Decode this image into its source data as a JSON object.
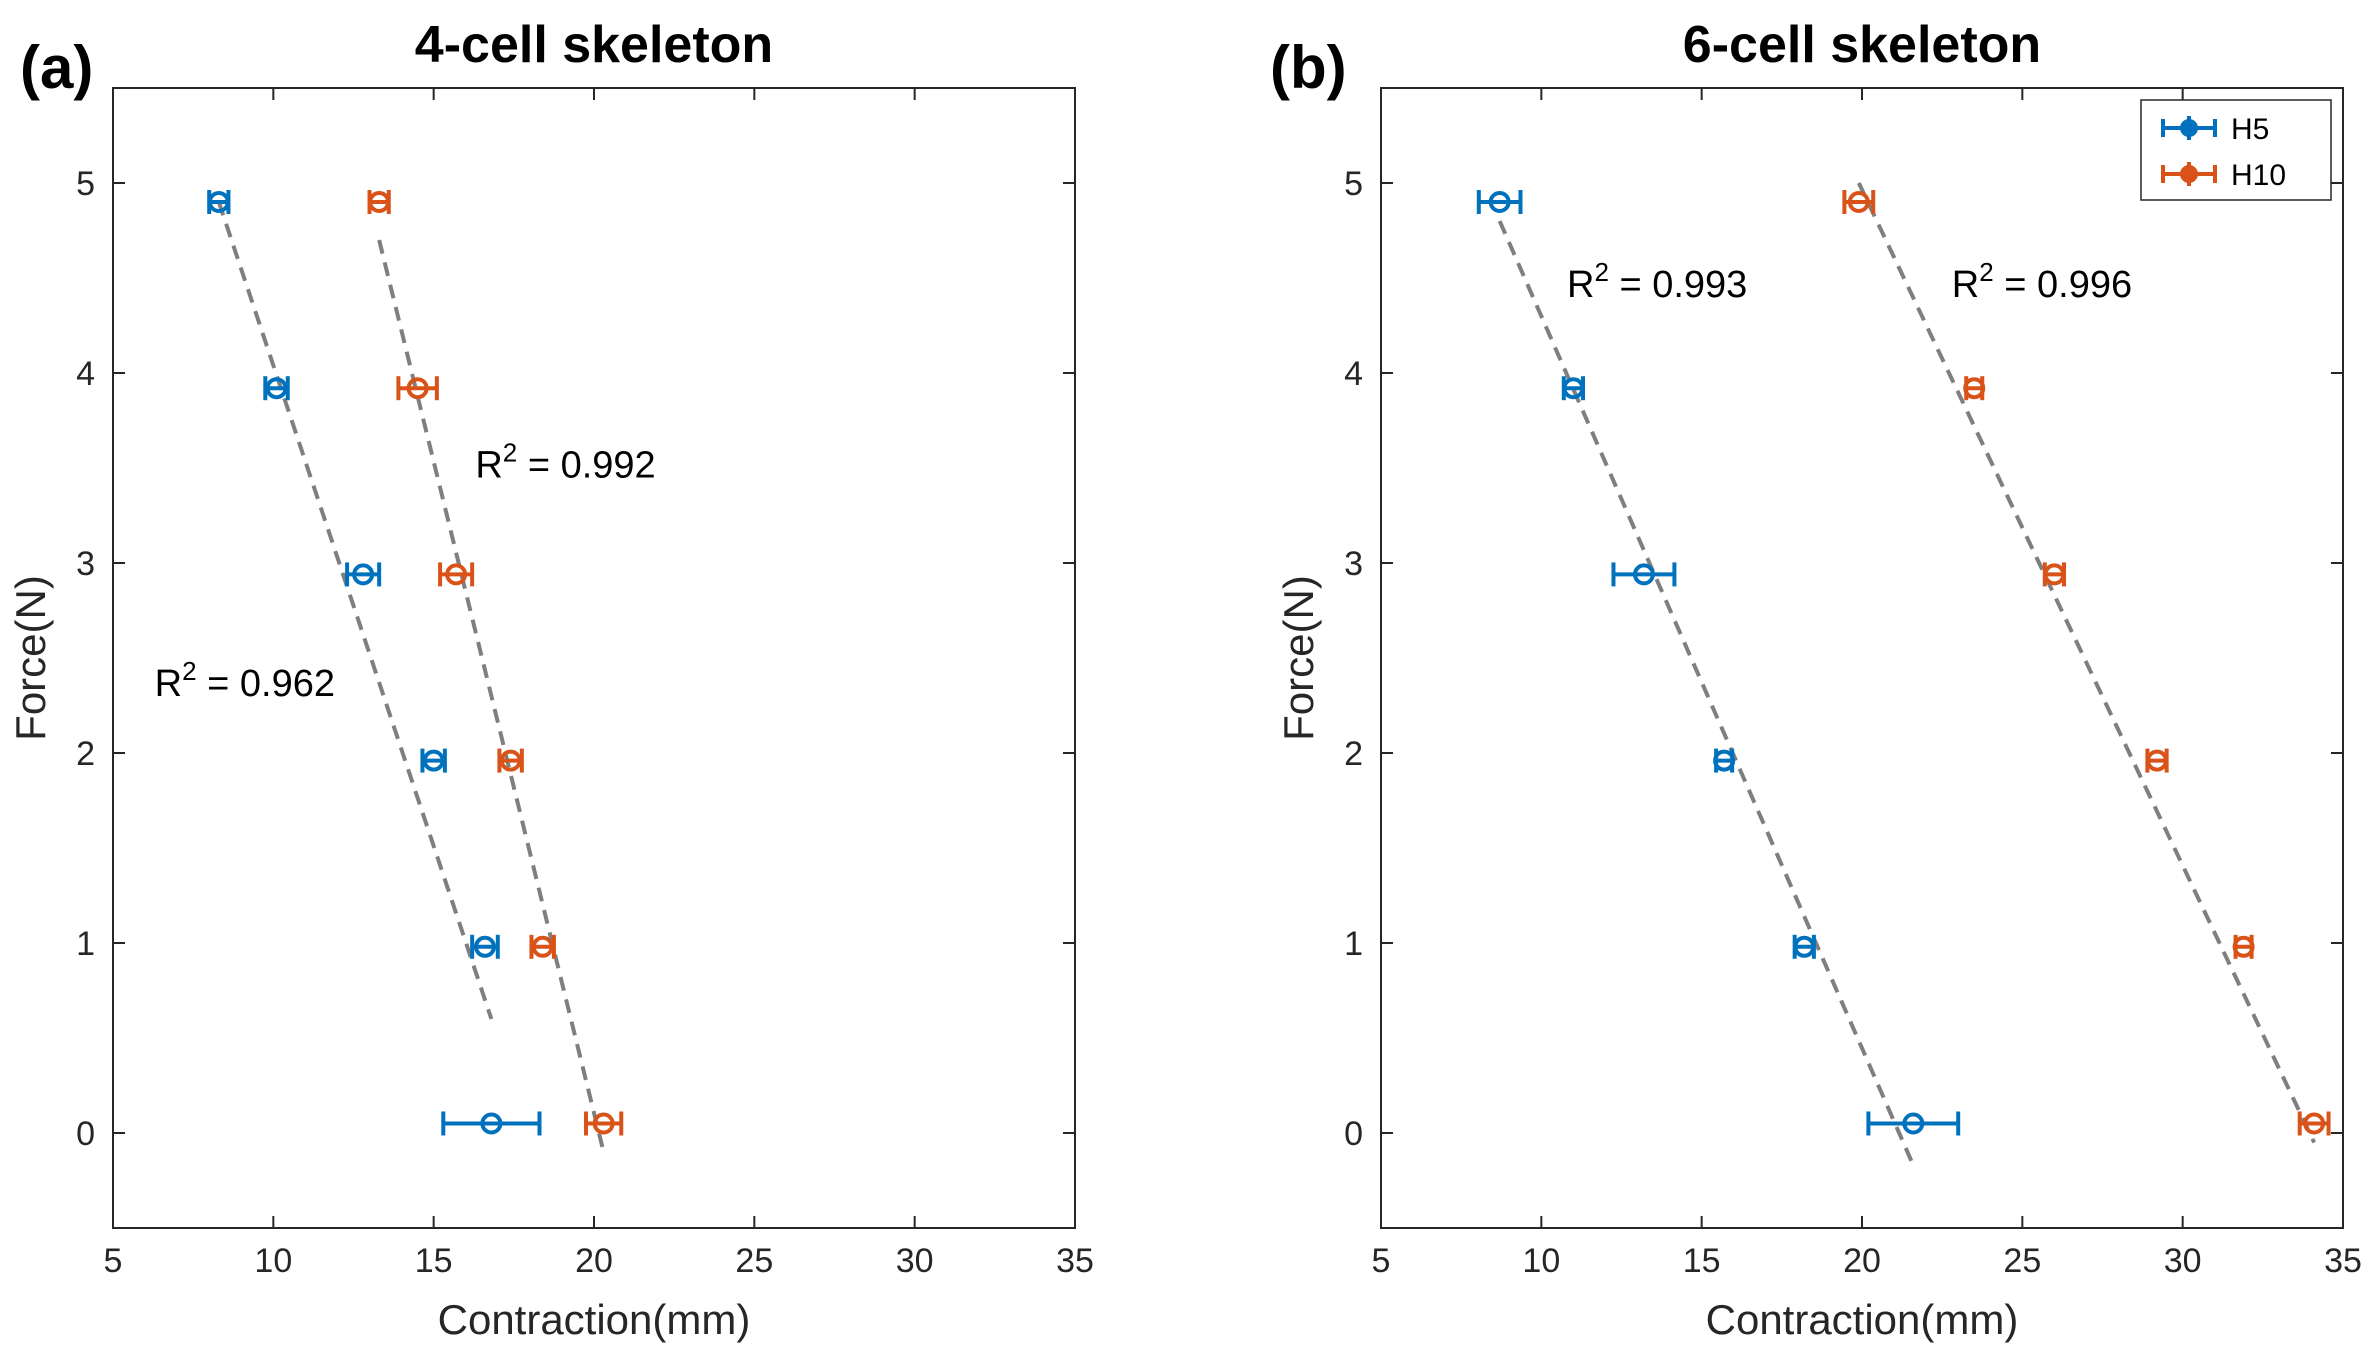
{
  "colors": {
    "H5": "#0072BD",
    "H10": "#D95319",
    "fit": "#7f7f7f",
    "axis": "#262626"
  },
  "chart_data": [
    {
      "panel_label": "(a)",
      "type": "scatter",
      "title": "4-cell skeleton",
      "xlabel": "Contraction(mm)",
      "ylabel": "Force(N)",
      "xlim": [
        5,
        35
      ],
      "ylim": [
        -0.5,
        5.5
      ],
      "xticks": [
        "5",
        "10",
        "15",
        "20",
        "25",
        "30",
        "35"
      ],
      "yticks": [
        "0",
        "1",
        "2",
        "3",
        "4",
        "5"
      ],
      "grid": false,
      "legend": null,
      "series": [
        {
          "key": "H5",
          "points": [
            {
              "x": 8.3,
              "y": 4.9,
              "xerr": 0.3
            },
            {
              "x": 10.1,
              "y": 3.92,
              "xerr": 0.35
            },
            {
              "x": 12.8,
              "y": 2.94,
              "xerr": 0.5
            },
            {
              "x": 15.0,
              "y": 1.96,
              "xerr": 0.35
            },
            {
              "x": 16.6,
              "y": 0.98,
              "xerr": 0.4
            },
            {
              "x": 16.8,
              "y": 0.05,
              "xerr": 1.5
            }
          ],
          "fit": {
            "x0": 8.3,
            "y0": 4.9,
            "x1": 16.8,
            "y1": 0.6
          },
          "r2": {
            "prefix": "R",
            "sup": "2",
            "value": " = 0.962",
            "x": 6.3,
            "y": 2.3
          }
        },
        {
          "key": "H10",
          "points": [
            {
              "x": 13.3,
              "y": 4.9,
              "xerr": 0.3
            },
            {
              "x": 14.5,
              "y": 3.92,
              "xerr": 0.6
            },
            {
              "x": 15.7,
              "y": 2.94,
              "xerr": 0.5
            },
            {
              "x": 17.4,
              "y": 1.96,
              "xerr": 0.35
            },
            {
              "x": 18.4,
              "y": 0.98,
              "xerr": 0.35
            },
            {
              "x": 20.3,
              "y": 0.05,
              "xerr": 0.55
            }
          ],
          "fit": {
            "x0": 13.3,
            "y0": 4.7,
            "x1": 20.3,
            "y1": -0.1
          },
          "r2": {
            "prefix": "R",
            "sup": "2",
            "value": " = 0.992",
            "x": 16.3,
            "y": 3.45
          }
        }
      ]
    },
    {
      "panel_label": "(b)",
      "type": "scatter",
      "title": "6-cell skeleton",
      "xlabel": "Contraction(mm)",
      "ylabel": "Force(N)",
      "xlim": [
        5,
        35
      ],
      "ylim": [
        -0.5,
        5.5
      ],
      "xticks": [
        "5",
        "10",
        "15",
        "20",
        "25",
        "30",
        "35"
      ],
      "yticks": [
        "0",
        "1",
        "2",
        "3",
        "4",
        "5"
      ],
      "grid": false,
      "legend": {
        "position": "top-right",
        "entries": [
          "H5",
          "H10"
        ]
      },
      "series": [
        {
          "key": "H5",
          "name": "H5",
          "points": [
            {
              "x": 8.7,
              "y": 4.9,
              "xerr": 0.65
            },
            {
              "x": 11.0,
              "y": 3.92,
              "xerr": 0.3
            },
            {
              "x": 13.2,
              "y": 2.94,
              "xerr": 0.95
            },
            {
              "x": 15.7,
              "y": 1.96,
              "xerr": 0.25
            },
            {
              "x": 18.2,
              "y": 0.98,
              "xerr": 0.3
            },
            {
              "x": 21.6,
              "y": 0.05,
              "xerr": 1.4
            }
          ],
          "fit": {
            "x0": 8.7,
            "y0": 4.8,
            "x1": 21.6,
            "y1": -0.17
          },
          "r2": {
            "prefix": "R",
            "sup": "2",
            "value": " = 0.993",
            "x": 10.8,
            "y": 4.4
          }
        },
        {
          "key": "H10",
          "name": "H10",
          "points": [
            {
              "x": 19.9,
              "y": 4.9,
              "xerr": 0.45
            },
            {
              "x": 23.5,
              "y": 3.92,
              "xerr": 0.25
            },
            {
              "x": 26.0,
              "y": 2.94,
              "xerr": 0.3
            },
            {
              "x": 29.2,
              "y": 1.96,
              "xerr": 0.3
            },
            {
              "x": 31.9,
              "y": 0.98,
              "xerr": 0.25
            },
            {
              "x": 34.1,
              "y": 0.05,
              "xerr": 0.45
            }
          ],
          "fit": {
            "x0": 19.9,
            "y0": 5.0,
            "x1": 34.1,
            "y1": -0.05
          },
          "r2": {
            "prefix": "R",
            "sup": "2",
            "value": " = 0.996",
            "x": 22.8,
            "y": 4.4
          }
        }
      ]
    }
  ]
}
